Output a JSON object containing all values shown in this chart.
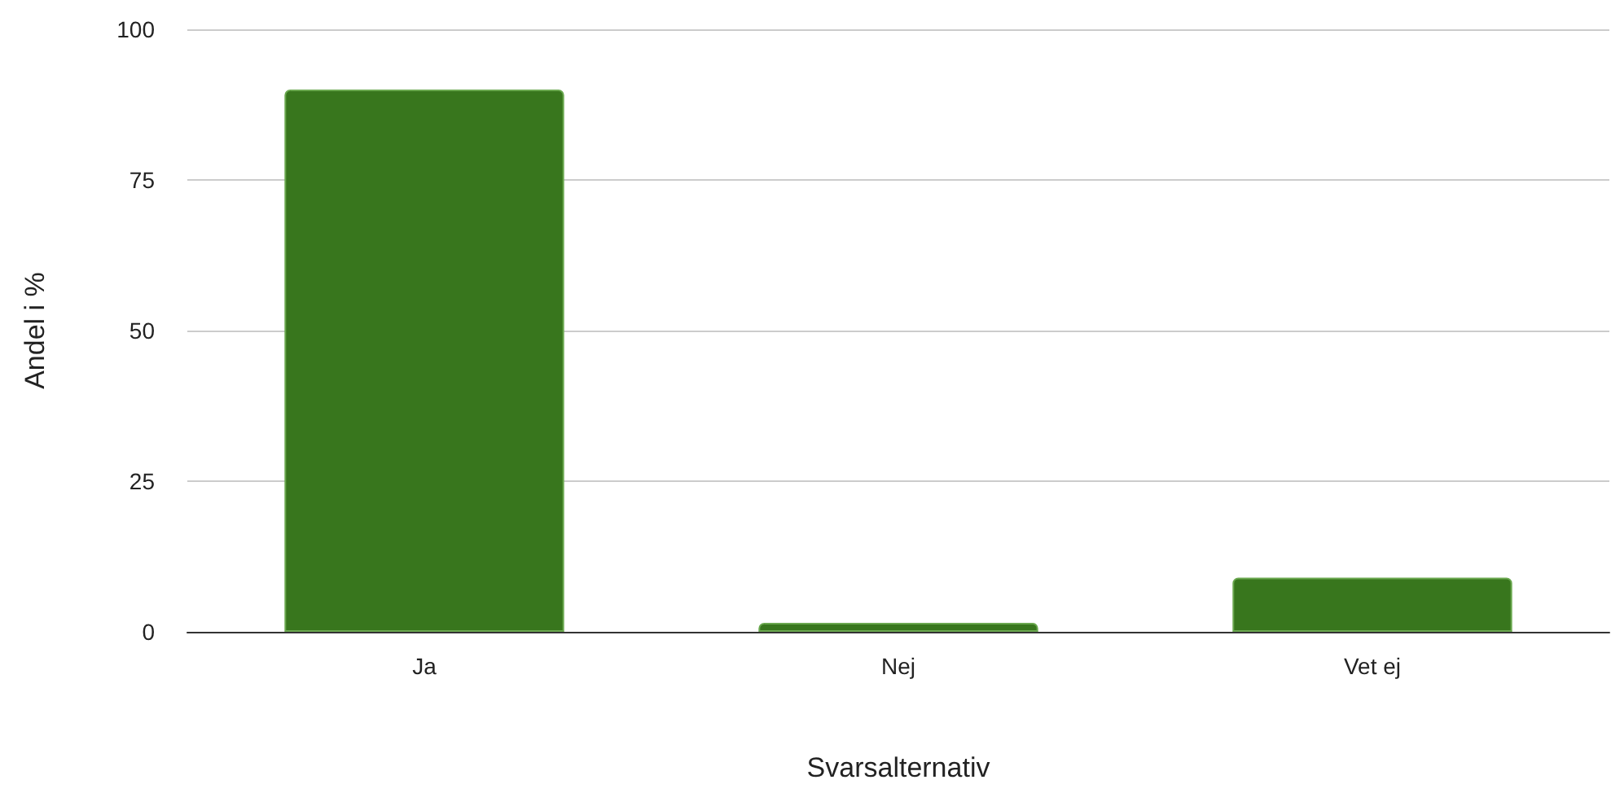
{
  "chart_data": {
    "type": "bar",
    "xlabel": "Svarsalternativ",
    "ylabel": "Andel i %",
    "categories": [
      "Ja",
      "Nej",
      "Vet ej"
    ],
    "values": [
      90,
      1.5,
      9
    ],
    "color": "#38761d",
    "ylim": [
      0,
      100
    ],
    "yticks": [
      0,
      25,
      50,
      75,
      100
    ],
    "grid": "y"
  }
}
